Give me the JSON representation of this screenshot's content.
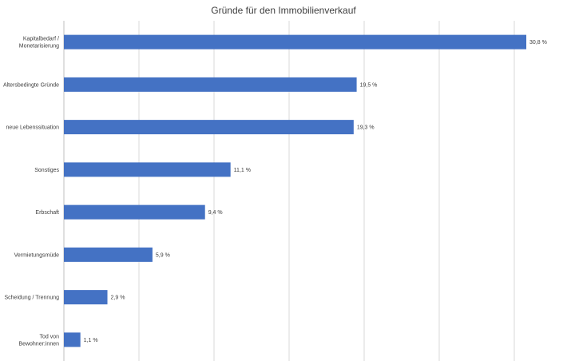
{
  "chart_data": {
    "type": "bar",
    "orientation": "horizontal",
    "title": "Gründe für den Immobilienverkauf",
    "xlabel": "",
    "ylabel": "",
    "xlim": [
      0,
      35
    ],
    "grid": true,
    "color": "#4472C4",
    "categories": [
      [
        "Kapitalbedarf /",
        "Monetarisierung"
      ],
      [
        "Altersbedingte Gründe"
      ],
      [
        "neue Lebenssituation"
      ],
      [
        "Sonstiges"
      ],
      [
        "Erbschaft"
      ],
      [
        "Vermietungsmüde"
      ],
      [
        "Scheidung / Trennung"
      ],
      [
        "Tod von",
        "Bewohner:innen"
      ]
    ],
    "values": [
      30.8,
      19.5,
      19.3,
      11.1,
      9.4,
      5.9,
      2.9,
      1.1
    ],
    "value_labels": [
      "30,8 %",
      "19,5 %",
      "19,3 %",
      "11,1 %",
      "9,4 %",
      "5,9 %",
      "2,9 %",
      "1,1 %"
    ]
  }
}
